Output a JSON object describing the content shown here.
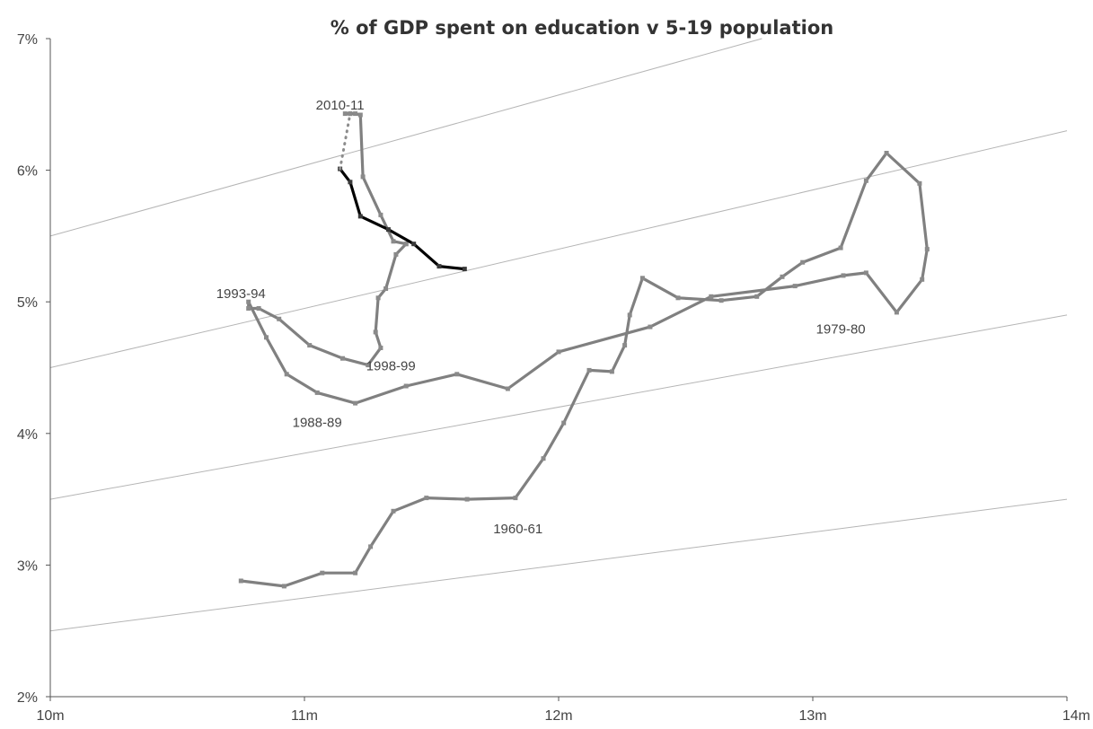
{
  "chart_data": {
    "type": "line",
    "title": "% of GDP spent on education v 5-19 population",
    "xlabel": "",
    "ylabel": "",
    "xlim": [
      10,
      14
    ],
    "ylim": [
      2,
      7
    ],
    "x_ticks": [
      {
        "value": 10,
        "label": "10m"
      },
      {
        "value": 11,
        "label": "11m"
      },
      {
        "value": 12,
        "label": "12m"
      },
      {
        "value": 13,
        "label": "13m"
      },
      {
        "value": 14,
        "label": "14m"
      }
    ],
    "y_ticks": [
      {
        "value": 2,
        "label": "2%"
      },
      {
        "value": 3,
        "label": "3%"
      },
      {
        "value": 4,
        "label": "4%"
      },
      {
        "value": 5,
        "label": "5%"
      },
      {
        "value": 6,
        "label": "6%"
      },
      {
        "value": 7,
        "label": "7%"
      }
    ],
    "grid": false,
    "legend": "none",
    "reference_lines": [
      {
        "x": [
          10,
          14
        ],
        "y": [
          2.5,
          3.5
        ]
      },
      {
        "x": [
          10,
          14
        ],
        "y": [
          3.5,
          4.9
        ]
      },
      {
        "x": [
          10,
          14
        ],
        "y": [
          4.5,
          6.3
        ]
      },
      {
        "x": [
          10,
          12.8
        ],
        "y": [
          5.5,
          7.0
        ]
      }
    ],
    "series": [
      {
        "style": "grey",
        "color": "#808080",
        "x": [
          10.75,
          10.92,
          11.07,
          11.2,
          11.26,
          11.35,
          11.48,
          11.64,
          11.83,
          11.94,
          12.02,
          12.12,
          12.21,
          12.26,
          12.28,
          12.33,
          12.47,
          12.64,
          12.78,
          12.88,
          12.96,
          13.11,
          13.21,
          13.29,
          13.42,
          13.45,
          13.43,
          13.33,
          13.21,
          13.12,
          12.93,
          12.6,
          12.36,
          12.0,
          11.8,
          11.6,
          11.4,
          11.2,
          11.05,
          10.93,
          10.85,
          10.78,
          10.78,
          10.82,
          10.9,
          11.02,
          11.15,
          11.25,
          11.3,
          11.28,
          11.29,
          11.32,
          11.36,
          11.4,
          11.4,
          11.35,
          11.3,
          11.23,
          11.22,
          11.2,
          11.18,
          11.18,
          11.16
        ],
        "y": [
          2.88,
          2.84,
          2.94,
          2.94,
          3.14,
          3.41,
          3.51,
          3.5,
          3.51,
          3.81,
          4.08,
          4.48,
          4.47,
          4.67,
          4.9,
          5.18,
          5.03,
          5.01,
          5.04,
          5.19,
          5.3,
          5.41,
          5.92,
          6.13,
          5.9,
          5.4,
          5.17,
          4.92,
          5.22,
          5.2,
          5.12,
          5.04,
          4.81,
          4.62,
          4.34,
          4.45,
          4.36,
          4.23,
          4.31,
          4.45,
          4.73,
          5.0,
          4.95,
          4.95,
          4.87,
          4.67,
          4.57,
          4.52,
          4.65,
          4.77,
          5.03,
          5.1,
          5.36,
          5.44,
          5.44,
          5.46,
          5.66,
          5.95,
          6.42,
          6.43,
          6.43,
          6.43,
          6.43
        ]
      },
      {
        "style": "black",
        "color": "#000000",
        "x": [
          11.63,
          11.53,
          11.43,
          11.33,
          11.22,
          11.18,
          11.14
        ],
        "y": [
          5.25,
          5.27,
          5.44,
          5.55,
          5.65,
          5.91,
          6.01
        ]
      },
      {
        "style": "dotted",
        "color": "#8c8c8c",
        "x": [
          11.14,
          11.16,
          11.18
        ],
        "y": [
          6.01,
          6.22,
          6.43
        ]
      }
    ],
    "annotations": [
      {
        "text": "2010-11",
        "x": 11.14,
        "y": 6.46
      },
      {
        "text": "1993-94",
        "x": 10.75,
        "y": 5.03
      },
      {
        "text": "1998-99",
        "x": 11.34,
        "y": 4.48
      },
      {
        "text": "1988-89",
        "x": 11.05,
        "y": 4.05
      },
      {
        "text": "1960-61",
        "x": 11.84,
        "y": 3.24
      },
      {
        "text": "1979-80",
        "x": 13.11,
        "y": 4.76
      }
    ]
  }
}
